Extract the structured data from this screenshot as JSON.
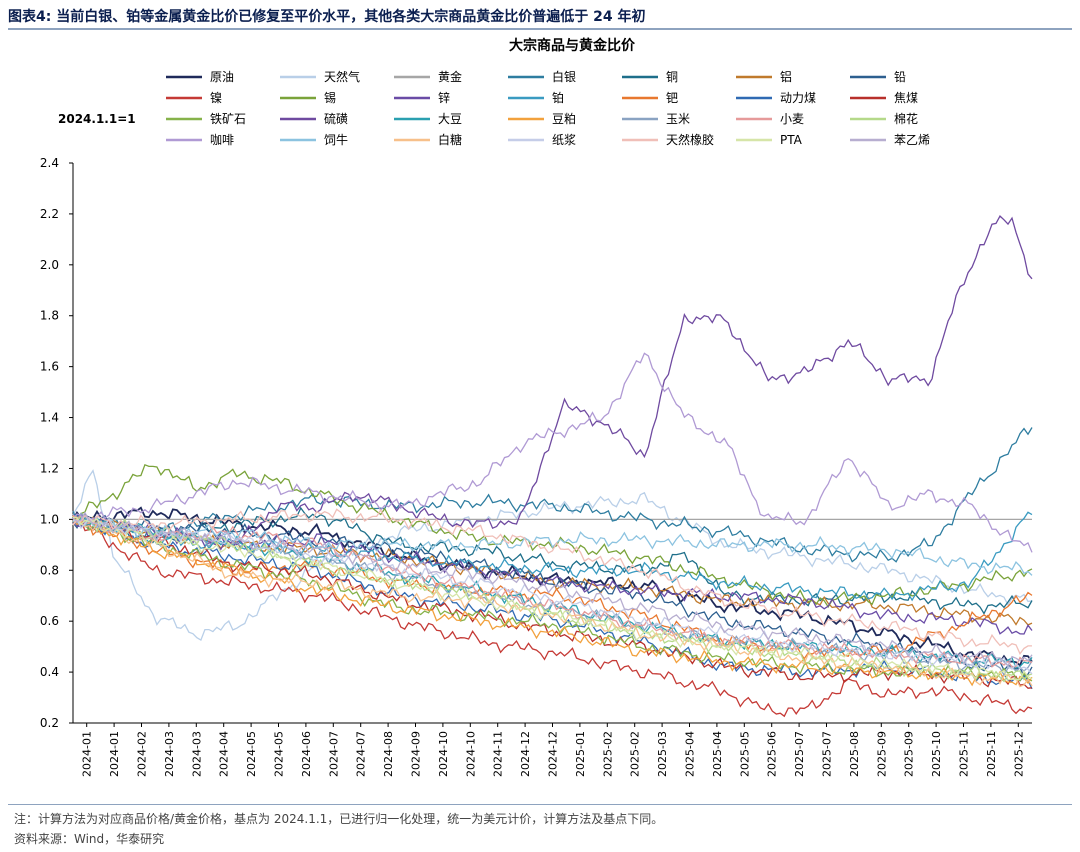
{
  "header": {
    "title": "图表4:  当前白银、铂等金属黄金比价已修复至平价水平，其他各类大宗商品黄金比价普遍低于 24 年初"
  },
  "footer": {
    "note": "注：计算方法为对应商品价格/黄金价格，基点为 2024.1.1，已进行归一化处理，统一为美元计价，计算方法及基点下同。",
    "source": "资料来源：Wind，华泰研究"
  },
  "chart_data": {
    "type": "line",
    "title": "大宗商品与黄金比价",
    "base_label": "2024.1.1=1",
    "xlabel": "",
    "ylabel": "",
    "ylim": [
      0.2,
      2.4
    ],
    "yticks": [
      "0.2",
      "0.4",
      "0.6",
      "0.8",
      "1.0",
      "1.2",
      "1.4",
      "1.6",
      "1.8",
      "2.0",
      "2.2",
      "2.4"
    ],
    "x_range_months": [
      0,
      23.5
    ],
    "xticks": [
      "2024-01",
      "2024-01",
      "2024-02",
      "2024-03",
      "2024-03",
      "2024-04",
      "2024-05",
      "2024-05",
      "2024-06",
      "2024-07",
      "2024-07",
      "2024-08",
      "2024-09",
      "2024-10",
      "2024-10",
      "2024-11",
      "2024-12",
      "2024-12",
      "2025-01",
      "2025-02",
      "2025-02",
      "2025-03",
      "2025-04",
      "2025-04",
      "2025-05",
      "2025-06",
      "2025-07",
      "2025-07",
      "2025-08",
      "2025-09",
      "2025-09",
      "2025-10",
      "2025-11",
      "2025-11",
      "2025-12"
    ],
    "series": [
      {
        "name": "原油",
        "color": "#1f2a5a",
        "x": [
          0,
          2,
          4,
          6,
          8,
          10,
          12,
          14,
          16,
          18,
          20,
          22,
          23.5
        ],
        "values": [
          1.0,
          1.03,
          0.98,
          0.95,
          0.86,
          0.8,
          0.76,
          0.74,
          0.66,
          0.62,
          0.55,
          0.47,
          0.44
        ]
      },
      {
        "name": "天然气",
        "color": "#b9cfe8",
        "x": [
          0,
          0.5,
          1,
          2,
          3,
          4,
          5,
          6,
          8,
          10,
          12,
          14,
          16,
          18,
          20,
          22,
          23.5
        ],
        "values": [
          1.0,
          1.2,
          0.85,
          0.62,
          0.55,
          0.58,
          0.7,
          0.82,
          0.95,
          1.0,
          1.05,
          1.08,
          0.9,
          0.85,
          0.8,
          0.72,
          0.68
        ]
      },
      {
        "name": "黄金",
        "color": "#a6a6a6",
        "x": [
          0,
          23.5
        ],
        "values": [
          1.0,
          1.0
        ]
      },
      {
        "name": "白银",
        "color": "#2e7da0",
        "x": [
          0,
          2,
          4,
          6,
          8,
          10,
          12,
          14,
          16,
          18,
          20,
          21,
          22,
          23.5
        ],
        "values": [
          1.0,
          0.95,
          1.02,
          1.08,
          1.05,
          1.07,
          1.05,
          1.0,
          0.95,
          0.88,
          0.85,
          0.9,
          1.1,
          1.37
        ]
      },
      {
        "name": "铜",
        "color": "#1e6f8a",
        "x": [
          0,
          2,
          4,
          6,
          8,
          10,
          12,
          14,
          15,
          16,
          18,
          20,
          22,
          23.5
        ],
        "values": [
          1.0,
          0.92,
          0.98,
          1.02,
          0.9,
          0.88,
          0.82,
          0.8,
          0.86,
          0.7,
          0.68,
          0.7,
          0.66,
          0.67
        ]
      },
      {
        "name": "铝",
        "color": "#c07a2c",
        "x": [
          0,
          2,
          4,
          6,
          8,
          10,
          12,
          14,
          16,
          18,
          20,
          22,
          23.5
        ],
        "values": [
          1.0,
          0.95,
          0.9,
          0.88,
          0.85,
          0.8,
          0.75,
          0.73,
          0.68,
          0.67,
          0.66,
          0.62,
          0.6
        ]
      },
      {
        "name": "铅",
        "color": "#2d5f8f",
        "x": [
          0,
          2,
          4,
          6,
          8,
          10,
          12,
          14,
          16,
          18,
          20,
          22,
          23.5
        ],
        "values": [
          1.0,
          0.97,
          0.95,
          0.92,
          0.88,
          0.82,
          0.75,
          0.7,
          0.6,
          0.55,
          0.5,
          0.43,
          0.41
        ]
      },
      {
        "name": "镍",
        "color": "#c53a36",
        "x": [
          0,
          2,
          4,
          6,
          8,
          10,
          12,
          14,
          16,
          17,
          18,
          19,
          20,
          21,
          22,
          23.5
        ],
        "values": [
          1.0,
          0.8,
          0.75,
          0.7,
          0.6,
          0.52,
          0.47,
          0.4,
          0.32,
          0.25,
          0.25,
          0.36,
          0.31,
          0.33,
          0.3,
          0.25
        ]
      },
      {
        "name": "锡",
        "color": "#7aa33a",
        "x": [
          0,
          1,
          2,
          3,
          4,
          5,
          6,
          8,
          10,
          12,
          14,
          16,
          18,
          20,
          22,
          23.5
        ],
        "values": [
          1.0,
          1.1,
          1.22,
          1.12,
          1.18,
          1.15,
          1.1,
          1.0,
          0.92,
          0.9,
          0.85,
          0.76,
          0.68,
          0.7,
          0.75,
          0.8
        ]
      },
      {
        "name": "锌",
        "color": "#6a4ca6",
        "x": [
          0,
          2,
          4,
          6,
          8,
          10,
          12,
          14,
          16,
          18,
          20,
          22,
          23.5
        ],
        "values": [
          1.0,
          0.95,
          0.9,
          0.92,
          0.85,
          0.8,
          0.75,
          0.72,
          0.7,
          0.68,
          0.62,
          0.6,
          0.55
        ]
      },
      {
        "name": "铂",
        "color": "#3a9bc1",
        "x": [
          0,
          2,
          4,
          6,
          8,
          10,
          12,
          14,
          16,
          18,
          20,
          22,
          23.5
        ],
        "values": [
          1.0,
          0.92,
          0.9,
          0.88,
          0.85,
          0.82,
          0.8,
          0.8,
          0.75,
          0.72,
          0.7,
          0.75,
          1.03
        ]
      },
      {
        "name": "钯",
        "color": "#e8782f",
        "x": [
          0,
          2,
          4,
          6,
          8,
          10,
          12,
          14,
          16,
          18,
          20,
          22,
          23.5
        ],
        "values": [
          1.0,
          0.88,
          0.8,
          0.82,
          0.75,
          0.72,
          0.7,
          0.62,
          0.52,
          0.48,
          0.48,
          0.6,
          0.7
        ]
      },
      {
        "name": "动力煤",
        "color": "#2f6ab3",
        "x": [
          0,
          2,
          4,
          6,
          8,
          10,
          12,
          14,
          16,
          18,
          20,
          22,
          23.5
        ],
        "values": [
          1.0,
          0.9,
          0.85,
          0.8,
          0.7,
          0.65,
          0.6,
          0.52,
          0.42,
          0.4,
          0.42,
          0.38,
          0.36
        ]
      },
      {
        "name": "焦煤",
        "color": "#b8302b",
        "x": [
          0,
          2,
          4,
          6,
          8,
          10,
          12,
          14,
          16,
          18,
          20,
          22,
          23.5
        ],
        "values": [
          1.0,
          0.92,
          0.82,
          0.78,
          0.68,
          0.62,
          0.55,
          0.5,
          0.42,
          0.38,
          0.4,
          0.38,
          0.35
        ]
      },
      {
        "name": "铁矿石",
        "color": "#86b24a",
        "x": [
          0,
          2,
          4,
          6,
          8,
          10,
          12,
          14,
          16,
          18,
          20,
          22,
          23.5
        ],
        "values": [
          1.0,
          0.9,
          0.82,
          0.75,
          0.65,
          0.62,
          0.58,
          0.5,
          0.45,
          0.42,
          0.4,
          0.4,
          0.38
        ]
      },
      {
        "name": "硫磺",
        "color": "#6f4aa0",
        "x": [
          0,
          2,
          4,
          5,
          6,
          7,
          8,
          9,
          10,
          11,
          12,
          13,
          14,
          15,
          16,
          17,
          18,
          19,
          20,
          21,
          21.5,
          22,
          22.5,
          23,
          23.5
        ],
        "values": [
          1.0,
          0.95,
          0.9,
          1.05,
          1.05,
          1.1,
          1.05,
          1.0,
          0.98,
          1.0,
          1.45,
          1.38,
          1.25,
          1.8,
          1.78,
          1.55,
          1.58,
          1.7,
          1.55,
          1.55,
          1.8,
          2.0,
          2.15,
          2.18,
          1.95
        ]
      },
      {
        "name": "大豆",
        "color": "#2aa0b0",
        "x": [
          0,
          2,
          4,
          6,
          8,
          10,
          12,
          14,
          16,
          18,
          20,
          22,
          23.5
        ],
        "values": [
          1.0,
          0.95,
          0.9,
          0.85,
          0.78,
          0.72,
          0.65,
          0.58,
          0.52,
          0.5,
          0.48,
          0.45,
          0.44
        ]
      },
      {
        "name": "豆粕",
        "color": "#f2a13d",
        "x": [
          0,
          2,
          4,
          6,
          8,
          10,
          12,
          14,
          16,
          18,
          20,
          22,
          23.5
        ],
        "values": [
          1.0,
          0.88,
          0.8,
          0.72,
          0.65,
          0.6,
          0.55,
          0.48,
          0.44,
          0.42,
          0.4,
          0.38,
          0.37
        ]
      },
      {
        "name": "玉米",
        "color": "#8aa3c2",
        "x": [
          0,
          2,
          4,
          6,
          8,
          10,
          12,
          14,
          16,
          18,
          20,
          22,
          23.5
        ],
        "values": [
          1.0,
          0.95,
          0.9,
          0.85,
          0.78,
          0.7,
          0.65,
          0.58,
          0.52,
          0.5,
          0.46,
          0.43,
          0.41
        ]
      },
      {
        "name": "小麦",
        "color": "#e69a9a",
        "x": [
          0,
          2,
          4,
          6,
          8,
          10,
          12,
          14,
          16,
          18,
          20,
          22,
          23.5
        ],
        "values": [
          1.0,
          0.93,
          0.95,
          0.9,
          0.8,
          0.72,
          0.65,
          0.58,
          0.52,
          0.5,
          0.47,
          0.45,
          0.43
        ]
      },
      {
        "name": "棉花",
        "color": "#b5d98a",
        "x": [
          0,
          2,
          4,
          6,
          8,
          10,
          12,
          14,
          16,
          18,
          20,
          22,
          23.5
        ],
        "values": [
          1.0,
          0.95,
          0.9,
          0.82,
          0.75,
          0.7,
          0.62,
          0.55,
          0.5,
          0.46,
          0.42,
          0.4,
          0.38
        ]
      },
      {
        "name": "咖啡",
        "color": "#b09ad4",
        "x": [
          0,
          2,
          4,
          6,
          8,
          10,
          11,
          12,
          13,
          14,
          15,
          16,
          17,
          18,
          19,
          20,
          21,
          22,
          23,
          23.5
        ],
        "values": [
          1.0,
          1.05,
          1.15,
          1.1,
          1.05,
          1.15,
          1.3,
          1.35,
          1.4,
          1.65,
          1.4,
          1.3,
          1.0,
          1.0,
          1.25,
          1.05,
          1.1,
          1.05,
          0.92,
          0.88
        ]
      },
      {
        "name": "饲牛",
        "color": "#8cc3e0",
        "x": [
          0,
          2,
          4,
          6,
          8,
          10,
          12,
          14,
          16,
          18,
          20,
          22,
          23.5
        ],
        "values": [
          1.0,
          0.95,
          0.95,
          0.9,
          0.9,
          0.9,
          0.92,
          0.92,
          0.9,
          0.9,
          0.88,
          0.82,
          0.8
        ]
      },
      {
        "name": "白糖",
        "color": "#f7c08a",
        "x": [
          0,
          2,
          4,
          6,
          8,
          10,
          12,
          14,
          16,
          18,
          20,
          22,
          23.5
        ],
        "values": [
          1.0,
          0.9,
          0.78,
          0.75,
          0.7,
          0.68,
          0.62,
          0.55,
          0.5,
          0.45,
          0.42,
          0.38,
          0.36
        ]
      },
      {
        "name": "纸浆",
        "color": "#c5cde8",
        "x": [
          0,
          2,
          4,
          6,
          8,
          10,
          12,
          14,
          16,
          18,
          20,
          22,
          23.5
        ],
        "values": [
          1.0,
          0.95,
          0.92,
          0.85,
          0.8,
          0.75,
          0.68,
          0.6,
          0.55,
          0.5,
          0.47,
          0.44,
          0.42
        ]
      },
      {
        "name": "天然橡胶",
        "color": "#f0bfb8",
        "x": [
          0,
          2,
          4,
          6,
          8,
          10,
          12,
          14,
          16,
          18,
          20,
          22,
          23.5
        ],
        "values": [
          1.0,
          0.98,
          1.0,
          1.02,
          1.0,
          0.95,
          0.88,
          0.8,
          0.68,
          0.62,
          0.58,
          0.52,
          0.5
        ]
      },
      {
        "name": "PTA",
        "color": "#d6e5a8",
        "x": [
          0,
          2,
          4,
          6,
          8,
          10,
          12,
          14,
          16,
          18,
          20,
          22,
          23.5
        ],
        "values": [
          1.0,
          0.92,
          0.88,
          0.82,
          0.75,
          0.68,
          0.62,
          0.55,
          0.5,
          0.47,
          0.43,
          0.4,
          0.38
        ]
      },
      {
        "name": "苯乙烯",
        "color": "#b7aed0",
        "x": [
          0,
          2,
          4,
          6,
          8,
          10,
          12,
          14,
          16,
          18,
          20,
          22,
          23.5
        ],
        "values": [
          1.0,
          0.95,
          0.92,
          0.88,
          0.82,
          0.78,
          0.72,
          0.65,
          0.58,
          0.54,
          0.5,
          0.46,
          0.45
        ]
      }
    ]
  }
}
